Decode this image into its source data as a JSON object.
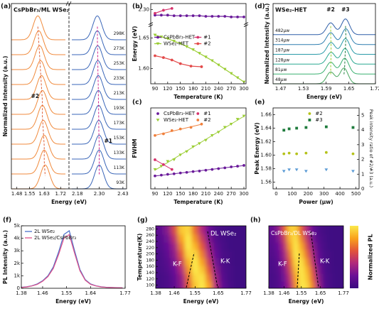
{
  "chart_data": [
    {
      "type": "ridgeline",
      "panel_label": "(a)",
      "title": "CsPbBr₃/ML WSe₂",
      "xlabel": "Energy (eV)",
      "ylabel": "Normalized Intensity (a.u.)",
      "xlim": [
        1.45,
        2.45
      ],
      "xbreak": [
        1.75,
        2.15
      ],
      "xticks": [
        1.48,
        1.55,
        1.63,
        1.72,
        2.18,
        {
          "value": 2.3,
          "label": "2.30"
        },
        2.43
      ],
      "categories": [
        "298K",
        "273K",
        "253K",
        "233K",
        "213K",
        "193K",
        "173K",
        "153K",
        "133K",
        "113K",
        "93K"
      ],
      "series": [
        {
          "name": "#2",
          "color": "#e0603a",
          "curve_color": "#f08a3c",
          "values": [
            1.595,
            1.6,
            1.605,
            1.61,
            1.615,
            1.62,
            1.62,
            1.625,
            1.63,
            1.63,
            1.635
          ]
        },
        {
          "name": "#1",
          "color": "#d02890",
          "curve_color": "#3a66b8",
          "values": [
            2.29,
            2.29,
            2.292,
            2.293,
            2.295,
            2.296,
            2.297,
            2.298,
            2.3,
            2.3,
            2.3
          ]
        }
      ]
    },
    {
      "type": "line",
      "panel_label": "(b)",
      "xlabel": "Temperature (K)",
      "ylabel": "Energy (eV)",
      "xlim": [
        80,
        305
      ],
      "xticks": [
        90,
        120,
        150,
        180,
        210,
        240,
        270,
        300
      ],
      "ylim": [
        1.575,
        2.31
      ],
      "ybreak": [
        1.67,
        2.28
      ],
      "yticks": [
        {
          "value": 1.6,
          "label": "1.60"
        },
        1.65,
        {
          "value": 2.3,
          "label": "2.30"
        }
      ],
      "legend": "center left",
      "series": [
        {
          "name": "CsPbBr₃-HET",
          "color": "#6a1b9a",
          "marker": "circle",
          "x": [
            90,
            105,
            120,
            135,
            150,
            165,
            180,
            195,
            210,
            225,
            240,
            255,
            270,
            285,
            300
          ],
          "values": [
            2.291,
            2.291,
            2.291,
            2.29,
            2.29,
            2.29,
            2.29,
            2.29,
            2.289,
            2.289,
            2.289,
            2.289,
            2.288,
            2.288,
            2.288
          ]
        },
        {
          "name": "WSe₂-HET",
          "color": "#9acd32",
          "marker": "triangle",
          "x": [
            90,
            105,
            120,
            135,
            150,
            165,
            180,
            195,
            210,
            225,
            240,
            255,
            270,
            285,
            300
          ],
          "values": [
            1.655,
            1.652,
            1.649,
            1.645,
            1.641,
            1.636,
            1.631,
            1.625,
            1.619,
            1.613,
            1.606,
            1.599,
            1.592,
            1.585,
            1.578
          ]
        },
        {
          "name": "#1",
          "color": "#d6336c",
          "marker": "circle",
          "x": [
            90,
            110,
            130
          ],
          "values": [
            2.294,
            2.299,
            2.302
          ]
        },
        {
          "name": "#2",
          "color": "#e34a4a",
          "marker": "circle",
          "x": [
            90,
            110,
            130,
            150,
            175,
            200
          ],
          "values": [
            1.621,
            1.618,
            1.614,
            1.608,
            1.604,
            1.603
          ]
        }
      ]
    },
    {
      "type": "scatter",
      "fit": true,
      "panel_label": "(c)",
      "xlabel": "Temperature (K)",
      "ylabel": "FWHM",
      "xlim": [
        80,
        305
      ],
      "xticks": [
        90,
        120,
        150,
        180,
        210,
        240,
        270,
        300
      ],
      "ylim": [
        0,
        50
      ],
      "legend": "upper left",
      "series": [
        {
          "name": "CsPbBr₃-HET",
          "color": "#6a1b9a",
          "marker": "circle",
          "x": [
            90,
            105,
            120,
            135,
            150,
            165,
            180,
            195,
            210,
            225,
            240,
            255,
            270,
            285,
            300
          ],
          "values": [
            8,
            8.5,
            9,
            9.3,
            9.8,
            10.2,
            10.7,
            11,
            11.5,
            12,
            12.5,
            13,
            13.6,
            14,
            14.5
          ]
        },
        {
          "name": "WSe₂-HET",
          "color": "#9acd32",
          "marker": "triangle",
          "x": [
            90,
            105,
            120,
            135,
            150,
            165,
            180,
            195,
            210,
            225,
            240,
            255,
            270,
            285,
            300
          ],
          "values": [
            12,
            14,
            17,
            18,
            21,
            23,
            26,
            28,
            30,
            33,
            35,
            38,
            40,
            43,
            45
          ]
        },
        {
          "name": "#1",
          "color": "#d6336c",
          "marker": "circle",
          "x": [
            90,
            110,
            130
          ],
          "values": [
            18,
            15,
            12
          ]
        },
        {
          "name": "#2",
          "color": "#f0803c",
          "marker": "circle",
          "x": [
            90,
            110,
            130,
            150,
            175,
            200
          ],
          "values": [
            33,
            34,
            36,
            37,
            38,
            40
          ]
        }
      ]
    },
    {
      "type": "ridgeline",
      "panel_label": "(d)",
      "title": "WSe₂-HET",
      "xlabel": "Energy (eV)",
      "ylabel": "Normalized Intensity (a.u.)",
      "xlim": [
        1.45,
        1.72
      ],
      "xticks": [
        1.47,
        1.53,
        1.59,
        1.65,
        1.72
      ],
      "categories": [
        "482μw",
        "314μw",
        "187μw",
        "128μw",
        "81μw",
        "48μw"
      ],
      "curve_colors": [
        "#2f5fa8",
        "#2f7fb0",
        "#2a9aa8",
        "#2aa890",
        "#3ab070",
        "#4aa860"
      ],
      "series": [
        {
          "name": "#2",
          "color": "#9acd32",
          "values": [
            1.602,
            1.602,
            1.603,
            1.603,
            1.602,
            1.602
          ]
        },
        {
          "name": "#3",
          "color": "#1e7b3c",
          "values": [
            1.641,
            1.642,
            1.641,
            1.64,
            1.639,
            1.637
          ]
        }
      ]
    },
    {
      "type": "scatter",
      "panel_label": "(e)",
      "xlabel": "Power (μw)",
      "ylabel": "Peak Energy (eV)",
      "ylabel_color": "#1e8b3c",
      "y2label": "Peak intensity ratio of #2/#3 (a.u.)",
      "y2label_color": "#5b9bd5",
      "xlim": [
        -20,
        520
      ],
      "xticks": [
        0,
        100,
        200,
        300,
        400,
        500
      ],
      "ylim": [
        1.55,
        1.67
      ],
      "yticks": [
        1.56,
        1.58,
        {
          "value": 1.6,
          "label": "1.60"
        },
        1.62,
        1.64,
        1.66
      ],
      "y2lim": [
        0,
        5.5
      ],
      "y2ticks": [
        0,
        1,
        2,
        3,
        4,
        5
      ],
      "legend": "upper right",
      "series": [
        {
          "name": "#2",
          "color": "#b5c21a",
          "marker": "circle",
          "x": [
            48,
            81,
            128,
            187,
            314,
            482
          ],
          "values": [
            1.602,
            1.603,
            1.602,
            1.603,
            1.604,
            1.602
          ]
        },
        {
          "name": "#3",
          "color": "#1e7b3c",
          "marker": "square",
          "x": [
            48,
            81,
            128,
            187,
            314,
            482
          ],
          "values": [
            1.637,
            1.639,
            1.64,
            1.641,
            1.642,
            1.641
          ]
        },
        {
          "color": "#5b9bd5",
          "marker": "triangle",
          "axis": "y2",
          "x": [
            48,
            81,
            128,
            187,
            314,
            482
          ],
          "values": [
            1.2,
            1.3,
            1.3,
            1.2,
            1.3,
            1.2
          ]
        }
      ]
    },
    {
      "type": "line",
      "panel_label": "(f)",
      "xlabel": "Energy (eV)",
      "ylabel": "PL Intensity (a.u.)",
      "xlim": [
        1.38,
        1.77
      ],
      "xticks": [
        1.38,
        1.46,
        1.55,
        1.64,
        1.77
      ],
      "ylim": [
        0,
        5000
      ],
      "yticks": [
        0,
        {
          "value": 1000,
          "label": "1k"
        },
        {
          "value": 2000,
          "label": "2k"
        },
        {
          "value": 3000,
          "label": "3k"
        },
        {
          "value": 4000,
          "label": "4k"
        },
        {
          "value": 5000,
          "label": "5k"
        }
      ],
      "legend": "upper left",
      "x": [
        1.38,
        1.4,
        1.42,
        1.44,
        1.46,
        1.48,
        1.5,
        1.52,
        1.54,
        1.56,
        1.58,
        1.6,
        1.62,
        1.64,
        1.66,
        1.68,
        1.7,
        1.72,
        1.74,
        1.76
      ],
      "series": [
        {
          "name": "2L WSe₂",
          "color": "#4a6fc8",
          "values": [
            80,
            120,
            200,
            350,
            600,
            1000,
            1700,
            2900,
            4300,
            4600,
            3000,
            1500,
            700,
            350,
            200,
            120,
            80,
            60,
            50,
            40
          ]
        },
        {
          "name": "2L WSe₂/CsPbBr₃",
          "color": "#e0508a",
          "values": [
            70,
            110,
            185,
            320,
            560,
            930,
            1580,
            2700,
            4000,
            4300,
            2800,
            1400,
            650,
            320,
            185,
            110,
            75,
            55,
            45,
            35
          ]
        }
      ]
    },
    {
      "type": "heatmap",
      "panel_label": "(g)",
      "xlabel": "Energy (eV)",
      "ylabel": "Temperature(K)",
      "annotations": [
        "DL WSe₂",
        "K-K",
        "K-F"
      ],
      "xlim": [
        1.38,
        1.77
      ],
      "xticks": [
        1.38,
        1.46,
        1.55,
        1.65,
        1.77
      ],
      "ylim": [
        90,
        290
      ],
      "yticks": [
        100,
        120,
        140,
        160,
        180,
        200,
        220,
        240,
        260,
        280
      ],
      "colormap": [
        "#3a0a80",
        "#6a1096",
        "#b0287c",
        "#e2543a",
        "#f9a21b",
        "#fbe94b"
      ],
      "x": [
        1.4,
        1.43,
        1.46,
        1.49,
        1.52,
        1.55,
        1.58,
        1.61,
        1.64,
        1.67,
        1.7,
        1.73,
        1.76
      ],
      "y": [
        100,
        125,
        150,
        175,
        200,
        225,
        250,
        275
      ],
      "z": [
        [
          0.05,
          0.08,
          0.15,
          0.3,
          0.6,
          0.9,
          1.0,
          0.8,
          0.4,
          0.15,
          0.06,
          0.03,
          0.02
        ],
        [
          0.05,
          0.08,
          0.16,
          0.32,
          0.65,
          0.95,
          0.98,
          0.7,
          0.35,
          0.12,
          0.05,
          0.03,
          0.02
        ],
        [
          0.06,
          0.1,
          0.2,
          0.4,
          0.75,
          1.0,
          0.9,
          0.6,
          0.28,
          0.1,
          0.05,
          0.03,
          0.02
        ],
        [
          0.07,
          0.12,
          0.25,
          0.5,
          0.85,
          1.0,
          0.8,
          0.5,
          0.22,
          0.08,
          0.04,
          0.02,
          0.02
        ],
        [
          0.08,
          0.15,
          0.3,
          0.6,
          0.95,
          0.95,
          0.7,
          0.4,
          0.18,
          0.07,
          0.04,
          0.02,
          0.02
        ],
        [
          0.1,
          0.18,
          0.35,
          0.7,
          1.0,
          0.85,
          0.6,
          0.32,
          0.14,
          0.06,
          0.03,
          0.02,
          0.02
        ],
        [
          0.12,
          0.22,
          0.45,
          0.8,
          1.0,
          0.75,
          0.5,
          0.25,
          0.1,
          0.05,
          0.03,
          0.02,
          0.02
        ],
        [
          0.15,
          0.28,
          0.55,
          0.9,
          0.95,
          0.65,
          0.4,
          0.2,
          0.08,
          0.04,
          0.03,
          0.02,
          0.02
        ]
      ]
    },
    {
      "type": "heatmap",
      "panel_label": "(h)",
      "xlabel": "Energy (eV)",
      "colorbar_label": "Normalized PL",
      "annotations": [
        "CsPbBr₃/DL WSe₂",
        "K-K",
        "K-F"
      ],
      "xlim": [
        1.38,
        1.77
      ],
      "xticks": [
        1.38,
        1.46,
        1.55,
        1.65,
        1.77
      ],
      "ylim": [
        90,
        290
      ],
      "colormap": [
        "#3a0a80",
        "#6a1096",
        "#b0287c",
        "#e2543a",
        "#f9a21b",
        "#fbe94b"
      ],
      "x": [
        1.4,
        1.43,
        1.46,
        1.49,
        1.52,
        1.55,
        1.58,
        1.61,
        1.64,
        1.67,
        1.7,
        1.73,
        1.76
      ],
      "y": [
        100,
        125,
        150,
        175,
        200,
        225,
        250,
        275
      ],
      "z": [
        [
          0.06,
          0.1,
          0.2,
          0.4,
          0.75,
          1.0,
          0.95,
          0.7,
          0.35,
          0.12,
          0.05,
          0.03,
          0.02
        ],
        [
          0.06,
          0.1,
          0.22,
          0.45,
          0.8,
          1.0,
          0.9,
          0.62,
          0.3,
          0.1,
          0.05,
          0.03,
          0.02
        ],
        [
          0.07,
          0.12,
          0.26,
          0.52,
          0.88,
          1.0,
          0.85,
          0.55,
          0.25,
          0.09,
          0.04,
          0.03,
          0.02
        ],
        [
          0.08,
          0.14,
          0.3,
          0.6,
          0.95,
          0.98,
          0.75,
          0.45,
          0.2,
          0.08,
          0.04,
          0.02,
          0.02
        ],
        [
          0.1,
          0.17,
          0.35,
          0.68,
          1.0,
          0.9,
          0.65,
          0.38,
          0.16,
          0.07,
          0.04,
          0.02,
          0.02
        ],
        [
          0.12,
          0.2,
          0.42,
          0.78,
          1.0,
          0.82,
          0.55,
          0.3,
          0.13,
          0.06,
          0.03,
          0.02,
          0.02
        ],
        [
          0.14,
          0.25,
          0.5,
          0.86,
          0.98,
          0.72,
          0.46,
          0.23,
          0.1,
          0.05,
          0.03,
          0.02,
          0.02
        ],
        [
          0.17,
          0.3,
          0.6,
          0.92,
          0.92,
          0.62,
          0.38,
          0.18,
          0.08,
          0.04,
          0.03,
          0.02,
          0.02
        ]
      ]
    }
  ]
}
